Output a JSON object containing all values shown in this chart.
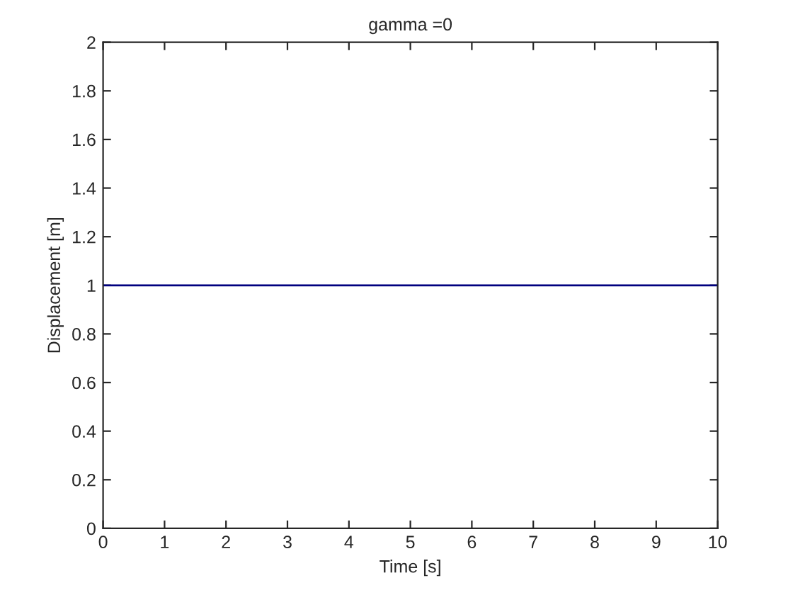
{
  "chart_data": {
    "type": "line",
    "title": "gamma =0",
    "xlabel": "Time [s]",
    "ylabel": "Displacement [m]",
    "x": [
      0,
      10
    ],
    "series": [
      {
        "color": "#00007f",
        "values": [
          1,
          1
        ]
      }
    ],
    "xlim": [
      0,
      10
    ],
    "ylim": [
      0,
      2
    ],
    "xticks": [
      0,
      1,
      2,
      3,
      4,
      5,
      6,
      7,
      8,
      9,
      10
    ],
    "yticks": [
      0,
      0.2,
      0.4,
      0.6,
      0.8,
      1,
      1.2,
      1.4,
      1.6,
      1.8,
      2
    ],
    "grid": false,
    "legend": false
  }
}
